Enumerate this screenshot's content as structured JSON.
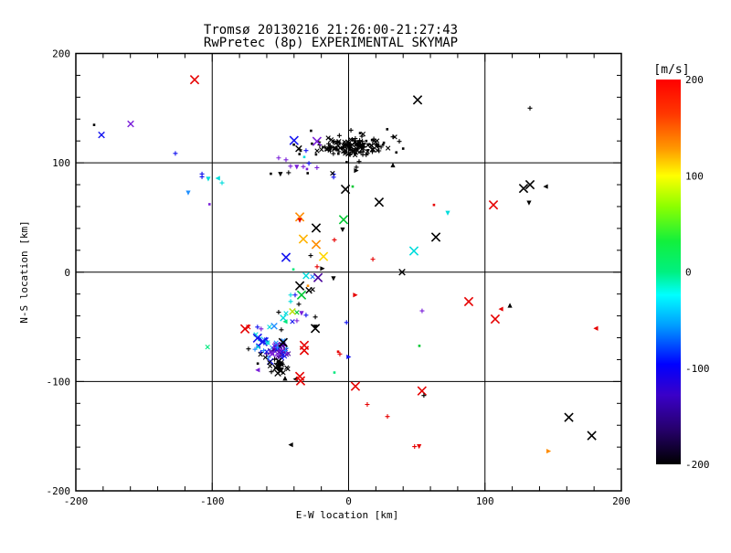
{
  "chart_data": {
    "type": "scatter",
    "title_line1": "Tromsø 20130216 21:26:00-21:27:43",
    "title_line2": "RwPretec (8p) EXPERIMENTAL SKYMAP",
    "xlabel": "E-W location [km]",
    "ylabel": "N-S location [km]",
    "xlim": [
      -200,
      200
    ],
    "ylim": [
      -200,
      200
    ],
    "xticks_major": [
      -200,
      -100,
      0,
      100,
      200
    ],
    "yticks_major": [
      -200,
      -100,
      0,
      100,
      200
    ],
    "minor_tick_step": 20,
    "gridline_values": [
      -100,
      0,
      100
    ],
    "grid": true,
    "colorbar": {
      "label": "[m/s]",
      "range": [
        -200,
        200
      ],
      "tick_values": [
        200,
        100,
        0,
        -100,
        -200
      ],
      "gradient_top_to_bottom": [
        {
          "at": 0.0,
          "color": "#ff0000"
        },
        {
          "at": 0.09,
          "color": "#ff3800"
        },
        {
          "at": 0.18,
          "color": "#ff9900"
        },
        {
          "at": 0.25,
          "color": "#ffff00"
        },
        {
          "at": 0.33,
          "color": "#8cff00"
        },
        {
          "at": 0.42,
          "color": "#12f03c"
        },
        {
          "at": 0.5,
          "color": "#00f080"
        },
        {
          "at": 0.56,
          "color": "#00ffff"
        },
        {
          "at": 0.64,
          "color": "#009cff"
        },
        {
          "at": 0.74,
          "color": "#0000ff"
        },
        {
          "at": 0.82,
          "color": "#3a00c8"
        },
        {
          "at": 0.91,
          "color": "#26006b"
        },
        {
          "at": 1.0,
          "color": "#000000"
        }
      ]
    },
    "palette": {
      "red": "#e60000",
      "orange": "#ff8c00",
      "amber": "#ffb300",
      "yellow": "#ffd700",
      "yellowgreen": "#b8e000",
      "green": "#00c832",
      "spring": "#00e87d",
      "cyan": "#00dcdc",
      "skyblue": "#2090ff",
      "blue": "#1414f0",
      "violet": "#7a1fd9",
      "darkviolet": "#46009b",
      "black": "#000000"
    },
    "points": [
      [
        -112.9,
        176,
        "red",
        "X"
      ],
      [
        -186.6,
        134.7,
        "black",
        "o"
      ],
      [
        -159.8,
        135.6,
        "violet",
        "M"
      ],
      [
        -181.2,
        125.5,
        "blue",
        "M"
      ],
      [
        -127,
        108.6,
        "blue",
        "+"
      ],
      [
        -107.5,
        89.8,
        "blue",
        "+"
      ],
      [
        -107.5,
        87.2,
        "blue",
        "+"
      ],
      [
        -102.9,
        85.1,
        "cyan",
        "td"
      ],
      [
        -96,
        85.9,
        "cyan",
        "tl"
      ],
      [
        -92.8,
        81.7,
        "cyan",
        "+"
      ],
      [
        -117.6,
        72.4,
        "skyblue",
        "td"
      ],
      [
        -102,
        62.1,
        "violet",
        "o"
      ],
      [
        50.6,
        157.5,
        "black",
        "X"
      ],
      [
        133,
        150,
        "black",
        "+"
      ],
      [
        133,
        80,
        "black",
        "X"
      ],
      [
        128.3,
        76.6,
        "black",
        "X"
      ],
      [
        144.4,
        78.3,
        "black",
        "tl"
      ],
      [
        62.6,
        61.5,
        "red",
        "o"
      ],
      [
        106.2,
        61.5,
        "red",
        "X"
      ],
      [
        132.3,
        63.2,
        "black",
        "td"
      ],
      [
        72.7,
        53.9,
        "cyan",
        "td"
      ],
      [
        5.7,
        96,
        "black",
        "+"
      ],
      [
        7.7,
        101.2,
        "black",
        "+"
      ],
      [
        -2.3,
        75.8,
        "black",
        "X"
      ],
      [
        3,
        78.3,
        "green",
        "o"
      ],
      [
        22.4,
        64,
        "black",
        "X"
      ],
      [
        -11,
        89.6,
        "blue",
        "+"
      ],
      [
        -11,
        86.9,
        "blue",
        "+"
      ],
      [
        -11.8,
        90.4,
        "black",
        "x"
      ],
      [
        5.7,
        92.9,
        "black",
        "tr"
      ],
      [
        32.5,
        98,
        "black",
        "tu"
      ],
      [
        -35.8,
        50.5,
        "orange",
        "X"
      ],
      [
        -35.8,
        47.2,
        "red",
        "td"
      ],
      [
        -3.7,
        48,
        "green",
        "X"
      ],
      [
        -23.8,
        40.4,
        "black",
        "X"
      ],
      [
        -4.4,
        38.7,
        "black",
        "td"
      ],
      [
        -33.2,
        30.3,
        "amber",
        "X"
      ],
      [
        -23.8,
        25.3,
        "orange",
        "X"
      ],
      [
        -10.4,
        29.5,
        "red",
        "+"
      ],
      [
        -45.9,
        13.5,
        "blue",
        "X"
      ],
      [
        -27.8,
        15.2,
        "black",
        "+"
      ],
      [
        -18.4,
        14.3,
        "yellow",
        "X"
      ],
      [
        17.8,
        11.8,
        "red",
        "+"
      ],
      [
        -40.5,
        2.5,
        "spring",
        "o"
      ],
      [
        -23.1,
        5,
        "red",
        "+"
      ],
      [
        -19.1,
        3.3,
        "black",
        "tr"
      ],
      [
        64,
        32,
        "black",
        "X"
      ],
      [
        47.9,
        19.4,
        "cyan",
        "X"
      ],
      [
        39.2,
        0,
        "black",
        "M"
      ],
      [
        88.1,
        -26.9,
        "red",
        "X"
      ],
      [
        53.9,
        -35.4,
        "violet",
        "+"
      ],
      [
        111.6,
        -33.7,
        "red",
        "tl"
      ],
      [
        118.3,
        -30.3,
        "black",
        "tu"
      ],
      [
        107.5,
        -42.9,
        "red",
        "X"
      ],
      [
        181.2,
        -51.4,
        "red",
        "tl"
      ],
      [
        51.9,
        -67.4,
        "green",
        "o"
      ],
      [
        -31.2,
        -3.3,
        "cyan",
        "M"
      ],
      [
        -26.4,
        -4.2,
        "skyblue",
        "x"
      ],
      [
        -22.4,
        -5,
        "darkviolet",
        "X"
      ],
      [
        -11.1,
        -5.9,
        "black",
        "td"
      ],
      [
        -35.8,
        -12.5,
        "black",
        "X"
      ],
      [
        -29.8,
        -12.5,
        "orange",
        "o"
      ],
      [
        -26.4,
        -15.9,
        "black",
        "x"
      ],
      [
        -29.1,
        -16.7,
        "black",
        "M"
      ],
      [
        -34.5,
        -20.9,
        "green",
        "X"
      ],
      [
        -42.5,
        -20.9,
        "cyan",
        "+"
      ],
      [
        -39.2,
        -20.9,
        "blue",
        "+"
      ],
      [
        -42.5,
        -26.8,
        "cyan",
        "+"
      ],
      [
        -36.5,
        -29.3,
        "black",
        "+"
      ],
      [
        5,
        -20.9,
        "red",
        "tr"
      ],
      [
        -51.3,
        -36.6,
        "black",
        "+"
      ],
      [
        -37.9,
        -36.8,
        "green",
        "x"
      ],
      [
        -41.2,
        -36,
        "yellowgreen",
        "M"
      ],
      [
        -45.9,
        -37.7,
        "cyan",
        "x"
      ],
      [
        -34.5,
        -37.7,
        "violet",
        "td"
      ],
      [
        -31.2,
        -39.3,
        "blue",
        "+"
      ],
      [
        -47.9,
        -41.9,
        "cyan",
        "M"
      ],
      [
        -46.6,
        -45.2,
        "spring",
        "tl"
      ],
      [
        -41.2,
        -45.2,
        "blue",
        "x"
      ],
      [
        -37.9,
        -44.4,
        "violet",
        "+"
      ],
      [
        -24.4,
        -41,
        "black",
        "+"
      ],
      [
        -24.4,
        -50.2,
        "black",
        "td"
      ],
      [
        -1.5,
        -46,
        "blue",
        "+"
      ],
      [
        -73.5,
        -50.2,
        "red",
        "x"
      ],
      [
        -66.8,
        -50.2,
        "blue",
        "+"
      ],
      [
        -64.1,
        -51.9,
        "violet",
        "+"
      ],
      [
        -58,
        -50.2,
        "cyan",
        "x"
      ],
      [
        -54.6,
        -49.4,
        "skyblue",
        "M"
      ],
      [
        -49.3,
        -52.7,
        "black",
        "+"
      ],
      [
        -24.4,
        -51.5,
        "black",
        "X"
      ],
      [
        -76,
        -51.9,
        "red",
        "X"
      ],
      [
        -68,
        -57,
        "cyan",
        "x"
      ],
      [
        -66.8,
        -60.3,
        "blue",
        "X"
      ],
      [
        -62.8,
        -63.5,
        "blue",
        "X"
      ],
      [
        -59.4,
        -64.4,
        "cyan",
        "x"
      ],
      [
        -60,
        -72.7,
        "blue",
        "x"
      ],
      [
        -48,
        -64.4,
        "black",
        "X"
      ],
      [
        -32.5,
        -66.9,
        "red",
        "X"
      ],
      [
        -73.4,
        -70.2,
        "black",
        "+"
      ],
      [
        -66.6,
        -83.6,
        "black",
        "o"
      ],
      [
        -64.6,
        -75.2,
        "black",
        "x"
      ],
      [
        -61,
        -78,
        "black",
        "x"
      ],
      [
        -58,
        -82.7,
        "black",
        "x"
      ],
      [
        -66.8,
        -89.5,
        "violet",
        "tl"
      ],
      [
        -56.6,
        -91.1,
        "black",
        "+"
      ],
      [
        -46.6,
        -97,
        "black",
        "tu"
      ],
      [
        -39.1,
        -97.8,
        "black",
        "tl"
      ],
      [
        -35.8,
        -95.3,
        "red",
        "X"
      ],
      [
        -32.5,
        -71.6,
        "red",
        "X"
      ],
      [
        -7.7,
        -72.7,
        "red",
        "o"
      ],
      [
        -6.4,
        -74.9,
        "red",
        "+"
      ],
      [
        0.2,
        -77.5,
        "blue",
        "tr"
      ],
      [
        -10.4,
        -91.8,
        "spring",
        "o"
      ],
      [
        -35.2,
        -99.4,
        "red",
        "X"
      ],
      [
        5,
        -104.4,
        "red",
        "X"
      ],
      [
        13.7,
        -121,
        "red",
        "+"
      ],
      [
        28.5,
        -132,
        "red",
        "+"
      ],
      [
        -42.5,
        -157.9,
        "black",
        "tl"
      ],
      [
        -103.4,
        -68.5,
        "spring",
        "x"
      ],
      [
        53.8,
        -108.6,
        "red",
        "X"
      ],
      [
        55.2,
        -112.8,
        "black",
        "+"
      ],
      [
        161.5,
        -132.8,
        "black",
        "X"
      ],
      [
        178.3,
        -149.5,
        "black",
        "X"
      ],
      [
        48.4,
        -159.5,
        "red",
        "+"
      ],
      [
        51.7,
        -159.5,
        "red",
        "td"
      ],
      [
        146.8,
        -163.7,
        "orange",
        "tr"
      ],
      [
        -40,
        120.4,
        "blue",
        "X"
      ],
      [
        -23.2,
        119.6,
        "violet",
        "X"
      ],
      [
        -36.6,
        112.9,
        "black",
        "M"
      ],
      [
        -31.2,
        111.2,
        "blue",
        "+"
      ],
      [
        -32.5,
        105.3,
        "cyan",
        "o"
      ],
      [
        -29.1,
        99.5,
        "blue",
        "+"
      ],
      [
        -51.3,
        104.5,
        "violet",
        "+"
      ],
      [
        -45.9,
        102.8,
        "violet",
        "+"
      ],
      [
        -42.6,
        96.9,
        "violet",
        "+"
      ],
      [
        -38,
        96,
        "violet",
        "td"
      ],
      [
        -33.2,
        96.5,
        "violet",
        "+"
      ],
      [
        -30.5,
        94.3,
        "violet",
        "o"
      ],
      [
        -23.2,
        95.6,
        "violet",
        "+"
      ],
      [
        -57,
        90,
        "black",
        "o"
      ],
      [
        -50,
        89.5,
        "black",
        "td"
      ],
      [
        -44,
        91,
        "black",
        "+"
      ],
      [
        -30,
        90.5,
        "black",
        "o"
      ],
      [
        10.4,
        110,
        "black",
        "+"
      ],
      [
        10.4,
        107.5,
        "black",
        "+"
      ],
      [
        32.5,
        123.8,
        "black",
        "+"
      ],
      [
        37.2,
        119.6,
        "black",
        "+"
      ],
      [
        40,
        113,
        "black",
        "o"
      ],
      [
        35,
        109.5,
        "black",
        "o"
      ],
      [
        21,
        115.5,
        "black",
        "td"
      ],
      [
        8.4,
        127.2,
        "black",
        "o"
      ]
    ],
    "clusters": [
      {
        "name": "meteor-trail-core",
        "count": 110,
        "cx": 3,
        "cy": 114.5,
        "sx": 12,
        "sy": 4.8,
        "xmin": -25,
        "xmax": 29,
        "ymin": 103,
        "ymax": 126,
        "colors": [
          "black"
        ],
        "markers": [
          "+",
          "x",
          "o",
          "+",
          "x"
        ],
        "seed": 17
      },
      {
        "name": "meteor-trail-halo",
        "count": 36,
        "cx": -2,
        "cy": 113,
        "sx": 20,
        "sy": 7.5,
        "xmin": -48,
        "xmax": 38,
        "ymin": 98,
        "ymax": 131,
        "colors": [
          "black"
        ],
        "markers": [
          "+",
          "o",
          "x"
        ],
        "seed": 99
      },
      {
        "name": "lower-cluster-purple",
        "count": 46,
        "cx": -52.5,
        "cy": -70.5,
        "sx": 4.2,
        "sy": 5.2,
        "xmin": -64,
        "xmax": -42,
        "ymin": -83,
        "ymax": -58,
        "colors": [
          "violet",
          "darkviolet",
          "blue",
          "violet",
          "darkviolet",
          "skyblue"
        ],
        "markers": [
          "x",
          "+",
          "M",
          "x"
        ],
        "seed": 5
      },
      {
        "name": "lower-cluster-black",
        "count": 20,
        "cx": -52.5,
        "cy": -86,
        "sx": 3.6,
        "sy": 4.2,
        "xmin": -62,
        "xmax": -44,
        "ymin": -95,
        "ymax": -77,
        "colors": [
          "black"
        ],
        "markers": [
          "x",
          "M",
          "+",
          "x"
        ],
        "seed": 23
      },
      {
        "name": "lower-cluster-blue-fringe",
        "count": 10,
        "cx": -63.5,
        "cy": -66,
        "sx": 2.8,
        "sy": 4,
        "xmin": -70,
        "xmax": -57,
        "ymin": -74,
        "ymax": -58,
        "colors": [
          "blue",
          "skyblue",
          "cyan"
        ],
        "markers": [
          "x",
          "+"
        ],
        "seed": 42
      }
    ]
  }
}
